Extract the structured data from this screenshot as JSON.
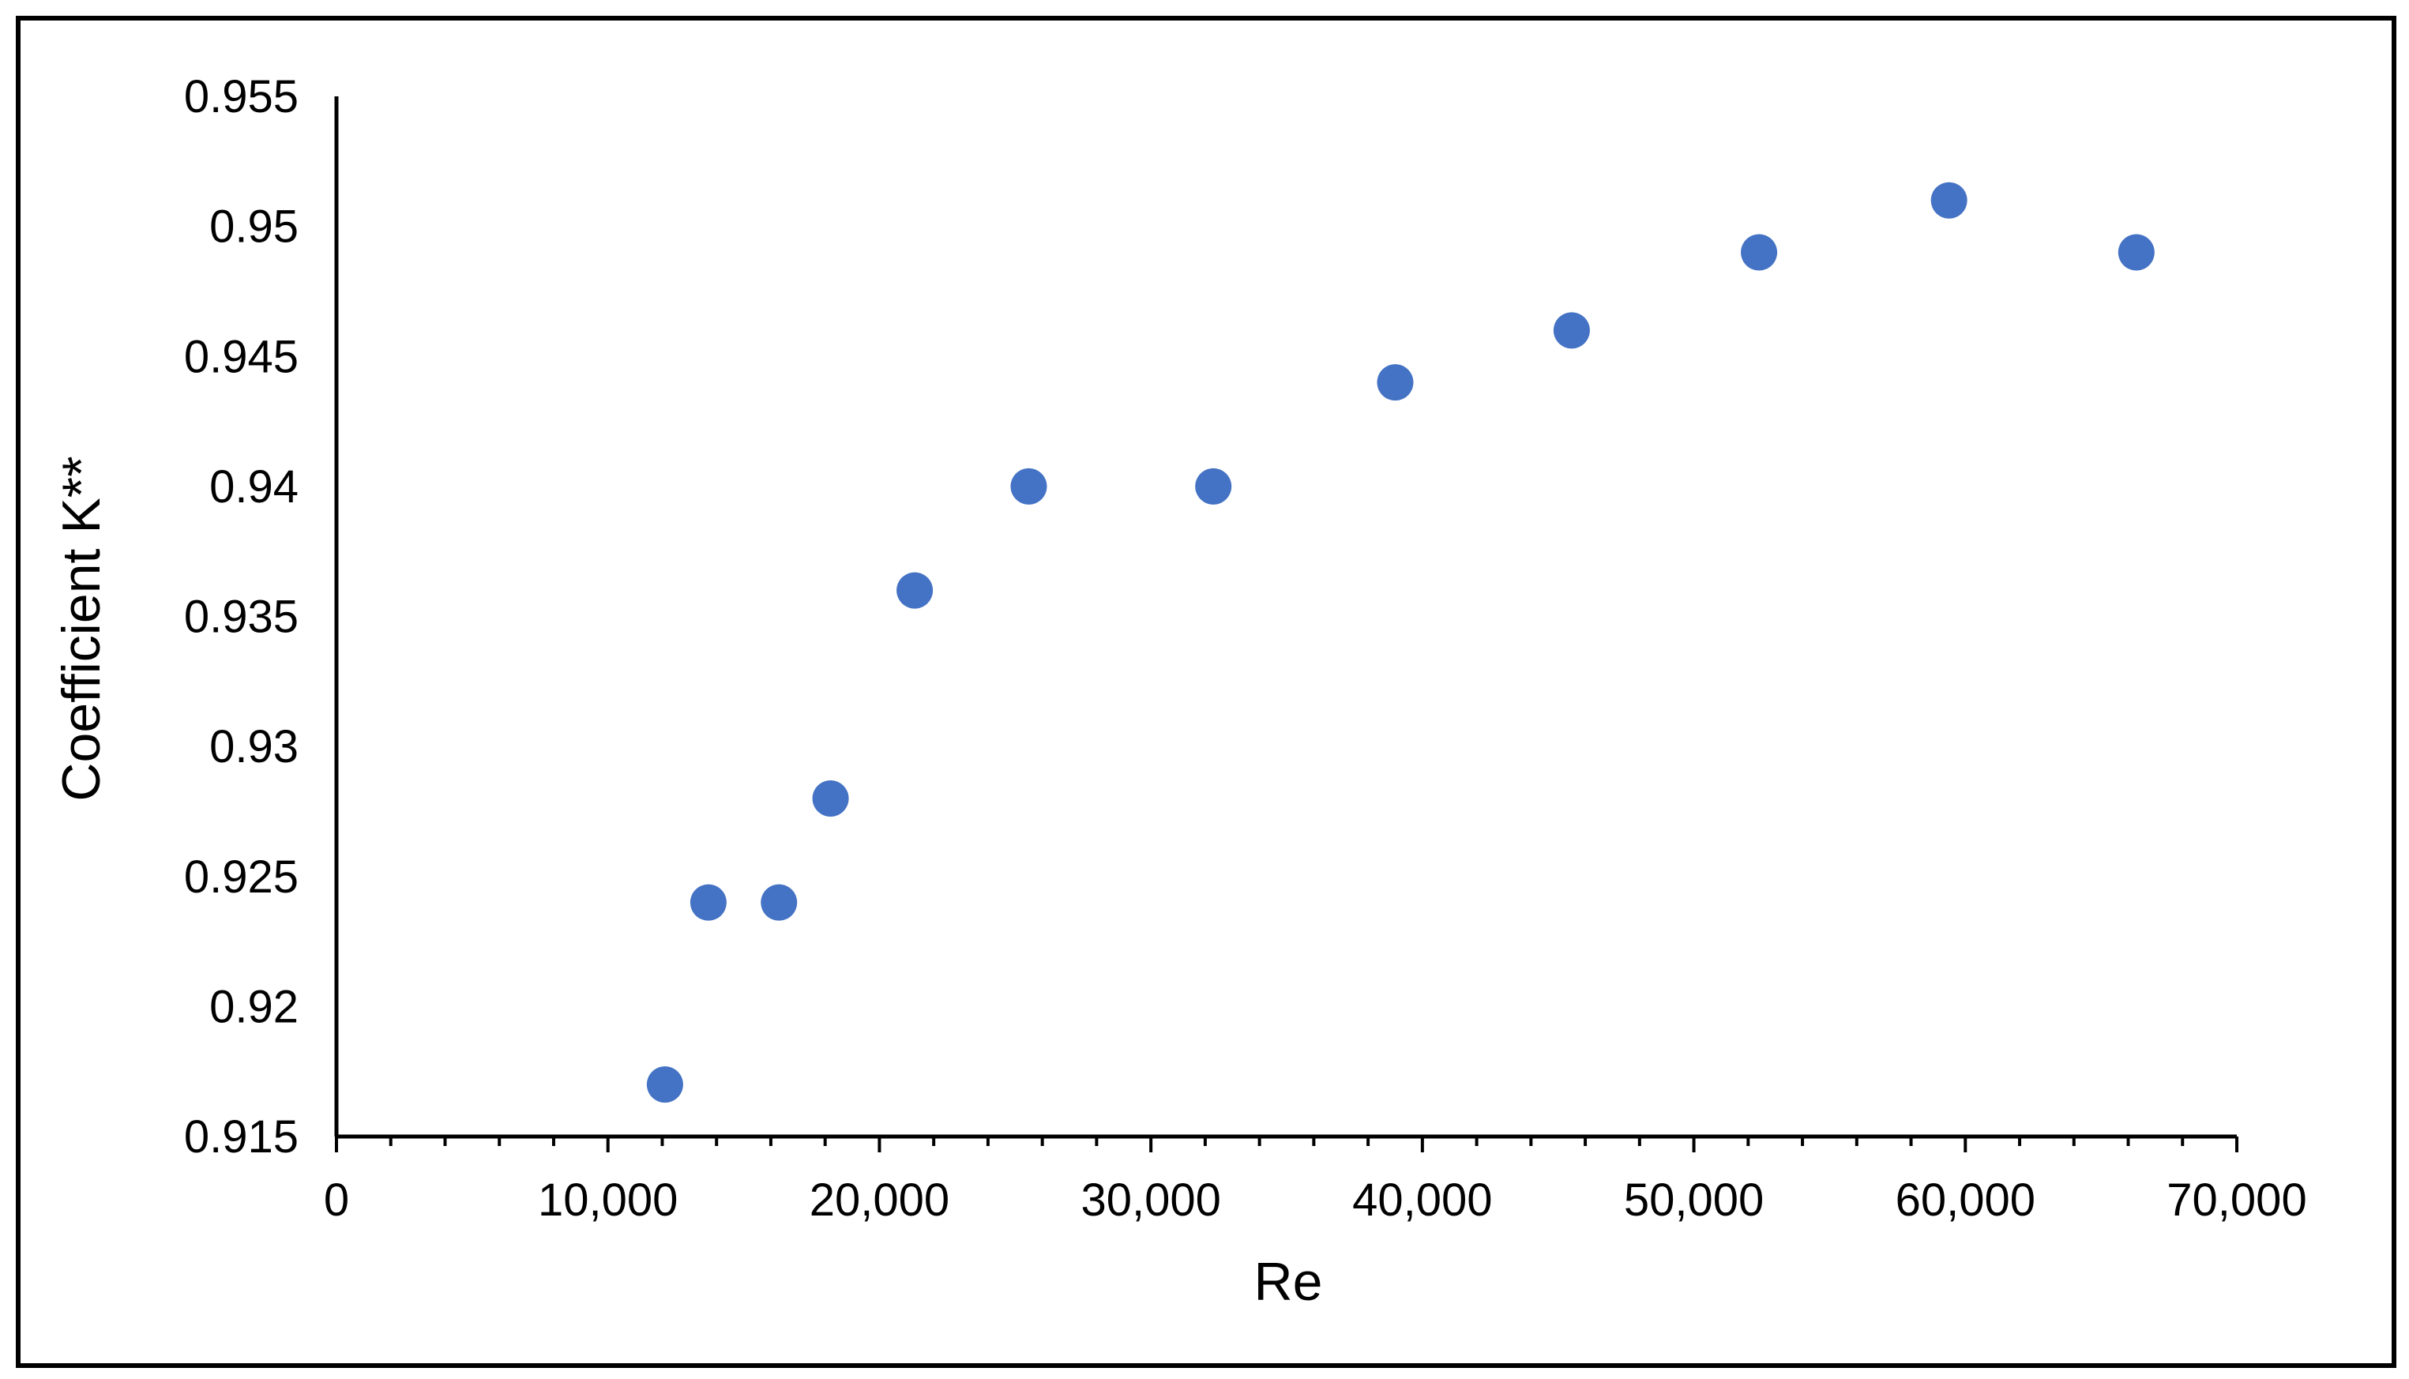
{
  "chart_data": {
    "type": "scatter",
    "title": "",
    "xlabel": "Re",
    "ylabel": "Coefficient K**",
    "xlim": [
      0,
      70000
    ],
    "ylim": [
      0.915,
      0.955
    ],
    "x_major_step": 10000,
    "x_minor_step": 2000,
    "y_major_step": 0.005,
    "x_tick_labels": [
      "0",
      "10,000",
      "20,000",
      "30,000",
      "40,000",
      "50,000",
      "60,000",
      "70,000"
    ],
    "y_tick_labels": [
      "0.915",
      "0.92",
      "0.925",
      "0.93",
      "0.935",
      "0.94",
      "0.945",
      "0.95",
      "0.955"
    ],
    "grid": false,
    "legend": "none",
    "marker_color": "#4472C4",
    "series": [
      {
        "x": [
          12100,
          13700,
          16300,
          18200,
          21300,
          25500,
          32300,
          39000,
          45500,
          52400,
          59400,
          66300
        ],
        "y": [
          0.917,
          0.924,
          0.924,
          0.928,
          0.936,
          0.94,
          0.94,
          0.944,
          0.946,
          0.949,
          0.951,
          0.949
        ]
      }
    ]
  }
}
